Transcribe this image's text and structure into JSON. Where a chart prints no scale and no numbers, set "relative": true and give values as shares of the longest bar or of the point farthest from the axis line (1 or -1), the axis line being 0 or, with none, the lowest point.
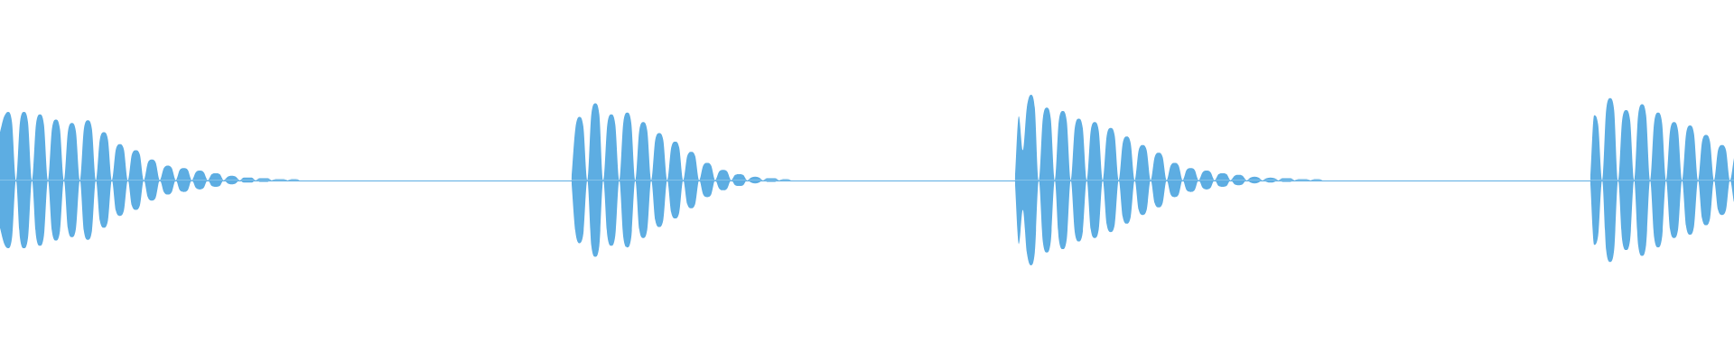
{
  "chart_data": {
    "type": "area",
    "relative": true,
    "categories": [
      null,
      null,
      null,
      null,
      null,
      null,
      null,
      null,
      null,
      null,
      null,
      null,
      null,
      null,
      null,
      null,
      null,
      null,
      null,
      null,
      null,
      null,
      null,
      null,
      null,
      null,
      null,
      null,
      null,
      null,
      null,
      null,
      null,
      null,
      null,
      null,
      null,
      null,
      null,
      null,
      null,
      null,
      null,
      null,
      null,
      null,
      null,
      null,
      null,
      null,
      null,
      null,
      null,
      null,
      null,
      null,
      null,
      null,
      null,
      null,
      null,
      null,
      null,
      null,
      null,
      null,
      null,
      null,
      null,
      null,
      null,
      null,
      null,
      null,
      null,
      null,
      null,
      null,
      null,
      null,
      null,
      null,
      null,
      null,
      null,
      null,
      null,
      null,
      null,
      null,
      null,
      null,
      null,
      null,
      null,
      null,
      null,
      null,
      null,
      null,
      null,
      null,
      null,
      null,
      null,
      null,
      null,
      null,
      null,
      null,
      null,
      null,
      null,
      null,
      null,
      null,
      null,
      null,
      null,
      null,
      null,
      null,
      null,
      null,
      null,
      null,
      null,
      null,
      null,
      null,
      null,
      null,
      null,
      null,
      null,
      null,
      null,
      null,
      null,
      null,
      null,
      null,
      null,
      null,
      null,
      null,
      null,
      null,
      null,
      null,
      null,
      null,
      null,
      null,
      null,
      null,
      null,
      null,
      null,
      null,
      null,
      null,
      null,
      null,
      null,
      null,
      null,
      null,
      null,
      null,
      null,
      null,
      null,
      null,
      null,
      null,
      null,
      null,
      null,
      null,
      null,
      null,
      null,
      null,
      null,
      null,
      null,
      null,
      null,
      null,
      null,
      null,
      null,
      null,
      null,
      null,
      null,
      null,
      null,
      null,
      null,
      null,
      null,
      null,
      null,
      null,
      null,
      null,
      null,
      null,
      null,
      null,
      null,
      null,
      null,
      null,
      null,
      null,
      null,
      null,
      null,
      null,
      null,
      null,
      null,
      null,
      null,
      null,
      null,
      null,
      null,
      null,
      null,
      null,
      null,
      null,
      null,
      null,
      null,
      null,
      null,
      null,
      null,
      null,
      null,
      null,
      null,
      null,
      null,
      null,
      null,
      null,
      null,
      null,
      null,
      null,
      null,
      null,
      null,
      null,
      null,
      null,
      null,
      null,
      null,
      null,
      null,
      null,
      null,
      null,
      null,
      null,
      null,
      null,
      null,
      null,
      null,
      null,
      null,
      null,
      null,
      null,
      null,
      null,
      null,
      null,
      null,
      null,
      null,
      null,
      null,
      null,
      null,
      null,
      null,
      null,
      null,
      null,
      null,
      null,
      null,
      null,
      null,
      null,
      null,
      null,
      null,
      null,
      null,
      null,
      null,
      null,
      null,
      null,
      null,
      null,
      null,
      null,
      null,
      null,
      null,
      null,
      null,
      null,
      null,
      null,
      null,
      null,
      null,
      null,
      null,
      null,
      null,
      null,
      null,
      null,
      null,
      null,
      null,
      null,
      null,
      null,
      null,
      null,
      null,
      null,
      null,
      null,
      null,
      null,
      null,
      null,
      null,
      null,
      null,
      null,
      null,
      null,
      null,
      null,
      null,
      null,
      null,
      null,
      null,
      null,
      null,
      null,
      null,
      null,
      null,
      null,
      null,
      null,
      null,
      null,
      null,
      null,
      null,
      null,
      null,
      null,
      null,
      null,
      null,
      null,
      null,
      null,
      null,
      null,
      null,
      null,
      null,
      null,
      null,
      null,
      null,
      null,
      null,
      null,
      null,
      null,
      null,
      null,
      null,
      null,
      null,
      null,
      null,
      null,
      null,
      null,
      null,
      null,
      null,
      null,
      null,
      null,
      null,
      null,
      null,
      null,
      null,
      null,
      null,
      null,
      null,
      null,
      null,
      null,
      null,
      null,
      null,
      null,
      null
    ],
    "series": [
      {
        "color": "#5dade2",
        "values": [
          0.56,
          0.74,
          0.8,
          0.68,
          0,
          0.68,
          0.8,
          0.68,
          0,
          0.65,
          0.77,
          0.65,
          0,
          0.6,
          0.71,
          0.6,
          0,
          0.57,
          0.67,
          0.57,
          0,
          0.6,
          0.7,
          0.6,
          0,
          0.48,
          0.56,
          0.48,
          0,
          0.36,
          0.42,
          0.36,
          0,
          0.3,
          0.35,
          0.3,
          0,
          0.2,
          0.24,
          0.2,
          0,
          0.14,
          0.17,
          0.14,
          0,
          0.12,
          0.14,
          0.12,
          0,
          0.09,
          0.11,
          0.09,
          0,
          0.07,
          0.08,
          0.07,
          0,
          0.04,
          0.05,
          0.04,
          0,
          0.03,
          0.03,
          0.03,
          0,
          0.02,
          0.02,
          0.02,
          0,
          0.01,
          0.01,
          0.01,
          0,
          0.01,
          0.01,
          0,
          null,
          null,
          null,
          null,
          null,
          null,
          null,
          null,
          null,
          null,
          null,
          null,
          null,
          null,
          null,
          null,
          null,
          null,
          null,
          null,
          null,
          null,
          null,
          null,
          null,
          null,
          null,
          null,
          null,
          null,
          null,
          null,
          null,
          null,
          null,
          null,
          null,
          null,
          null,
          null,
          null,
          null,
          null,
          null,
          null,
          null,
          null,
          null,
          null,
          null,
          null,
          null,
          null,
          null,
          null,
          null,
          null,
          null,
          null,
          null,
          null,
          null,
          null,
          null,
          null,
          null,
          null,
          0,
          0.6,
          0.74,
          0.63,
          0,
          0.77,
          0.9,
          0.77,
          0,
          0.65,
          0.77,
          0.65,
          0,
          0.67,
          0.79,
          0.67,
          0,
          0.58,
          0.68,
          0.58,
          0,
          0.47,
          0.55,
          0.47,
          0,
          0.38,
          0.45,
          0.38,
          0,
          0.28,
          0.33,
          0.28,
          0,
          0.17,
          0.2,
          0.17,
          0,
          0.1,
          0.12,
          0.1,
          0,
          0.06,
          0.07,
          0.06,
          0,
          0.03,
          0.04,
          0.03,
          0,
          0.02,
          0.02,
          0.02,
          0,
          0.01,
          0.01,
          0,
          null,
          null,
          null,
          null,
          null,
          null,
          null,
          null,
          null,
          null,
          null,
          null,
          null,
          null,
          null,
          null,
          null,
          null,
          null,
          null,
          null,
          null,
          null,
          null,
          null,
          null,
          null,
          null,
          null,
          null,
          null,
          null,
          null,
          null,
          null,
          null,
          null,
          null,
          null,
          null,
          null,
          null,
          null,
          null,
          null,
          null,
          null,
          null,
          null,
          null,
          null,
          null,
          null,
          null,
          null,
          0,
          0.75,
          0.35,
          0.85,
          1,
          0.85,
          0,
          0.72,
          0.85,
          0.72,
          0,
          0.69,
          0.81,
          0.69,
          0,
          0.61,
          0.72,
          0.61,
          0,
          0.58,
          0.68,
          0.58,
          0,
          0.52,
          0.61,
          0.52,
          0,
          0.43,
          0.51,
          0.43,
          0,
          0.35,
          0.41,
          0.35,
          0,
          0.27,
          0.32,
          0.27,
          0,
          0.17,
          0.2,
          0.17,
          0,
          0.12,
          0.14,
          0.12,
          0,
          0.09,
          0.11,
          0.09,
          0,
          0.07,
          0.08,
          0.07,
          0,
          0.05,
          0.06,
          0.05,
          0,
          0.03,
          0.04,
          0.03,
          0,
          0.02,
          0.03,
          0.02,
          0,
          0.02,
          0.02,
          0.02,
          0,
          0.01,
          0.01,
          0.01,
          0,
          0.01,
          0.01,
          0,
          null,
          null,
          null,
          null,
          null,
          null,
          null,
          null,
          null,
          null,
          null,
          null,
          null,
          null,
          null,
          null,
          null,
          null,
          null,
          null,
          null,
          null,
          null,
          null,
          null,
          null,
          null,
          null,
          null,
          null,
          null,
          null,
          null,
          null,
          null,
          null,
          null,
          null,
          null,
          null,
          null,
          null,
          null,
          null,
          null,
          null,
          null,
          null,
          null,
          null,
          null,
          null,
          null,
          null,
          null,
          null,
          null,
          null,
          null,
          null,
          null,
          null,
          null,
          null,
          null,
          null,
          0,
          0.76,
          0.65,
          0,
          0.82,
          0.96,
          0.82,
          0,
          0.7,
          0.82,
          0.7,
          0,
          0.76,
          0.89,
          0.76,
          0,
          0.67,
          0.79,
          0.67,
          0,
          0.58,
          0.68,
          0.58,
          0,
          0.54,
          0.64,
          0.54,
          0,
          0.45,
          0.53,
          0.45,
          0,
          0.35,
          0.41,
          0.35,
          0,
          0.26
        ]
      },
      {
        "color": "#5dade2",
        "values": [
          -0.56,
          -0.74,
          -0.8,
          -0.68,
          0,
          -0.68,
          -0.8,
          -0.68,
          0,
          -0.65,
          -0.77,
          -0.65,
          0,
          -0.6,
          -0.71,
          -0.6,
          0,
          -0.57,
          -0.67,
          -0.57,
          0,
          -0.6,
          -0.7,
          -0.6,
          0,
          -0.48,
          -0.56,
          -0.48,
          0,
          -0.36,
          -0.42,
          -0.36,
          0,
          -0.3,
          -0.35,
          -0.3,
          0,
          -0.2,
          -0.24,
          -0.2,
          0,
          -0.14,
          -0.17,
          -0.14,
          0,
          -0.12,
          -0.14,
          -0.12,
          0,
          -0.09,
          -0.11,
          -0.09,
          0,
          -0.07,
          -0.08,
          -0.07,
          0,
          -0.04,
          -0.05,
          -0.04,
          0,
          -0.03,
          -0.03,
          -0.03,
          0,
          -0.02,
          -0.02,
          -0.02,
          0,
          -0.01,
          -0.01,
          -0.01,
          0,
          -0.01,
          -0.01,
          0,
          null,
          null,
          null,
          null,
          null,
          null,
          null,
          null,
          null,
          null,
          null,
          null,
          null,
          null,
          null,
          null,
          null,
          null,
          null,
          null,
          null,
          null,
          null,
          null,
          null,
          null,
          null,
          null,
          null,
          null,
          null,
          null,
          null,
          null,
          null,
          null,
          null,
          null,
          null,
          null,
          null,
          null,
          null,
          null,
          null,
          null,
          null,
          null,
          null,
          null,
          null,
          null,
          null,
          null,
          null,
          null,
          null,
          null,
          null,
          null,
          null,
          null,
          null,
          null,
          null,
          null,
          null,
          0,
          -0.6,
          -0.74,
          -0.63,
          0,
          -0.77,
          -0.9,
          -0.77,
          0,
          -0.65,
          -0.77,
          -0.65,
          0,
          -0.67,
          -0.79,
          -0.67,
          0,
          -0.58,
          -0.68,
          -0.58,
          0,
          -0.47,
          -0.55,
          -0.47,
          0,
          -0.38,
          -0.45,
          -0.38,
          0,
          -0.28,
          -0.33,
          -0.28,
          0,
          -0.17,
          -0.2,
          -0.17,
          0,
          -0.1,
          -0.12,
          -0.1,
          0,
          -0.06,
          -0.07,
          -0.06,
          0,
          -0.03,
          -0.04,
          -0.03,
          0,
          -0.02,
          -0.02,
          -0.02,
          0,
          -0.01,
          -0.01,
          0,
          null,
          null,
          null,
          null,
          null,
          null,
          null,
          null,
          null,
          null,
          null,
          null,
          null,
          null,
          null,
          null,
          null,
          null,
          null,
          null,
          null,
          null,
          null,
          null,
          null,
          null,
          null,
          null,
          null,
          null,
          null,
          null,
          null,
          null,
          null,
          null,
          null,
          null,
          null,
          null,
          null,
          null,
          null,
          null,
          null,
          null,
          null,
          null,
          null,
          null,
          null,
          null,
          null,
          null,
          null,
          0,
          -0.75,
          -0.35,
          -0.85,
          -1,
          -0.85,
          0,
          -0.72,
          -0.85,
          -0.72,
          0,
          -0.69,
          -0.81,
          -0.69,
          0,
          -0.61,
          -0.72,
          -0.61,
          0,
          -0.58,
          -0.68,
          -0.58,
          0,
          -0.52,
          -0.61,
          -0.52,
          0,
          -0.43,
          -0.51,
          -0.43,
          0,
          -0.35,
          -0.41,
          -0.35,
          0,
          -0.27,
          -0.32,
          -0.27,
          0,
          -0.17,
          -0.2,
          -0.17,
          0,
          -0.12,
          -0.14,
          -0.12,
          0,
          -0.09,
          -0.11,
          -0.09,
          0,
          -0.07,
          -0.08,
          -0.07,
          0,
          -0.05,
          -0.06,
          -0.05,
          0,
          -0.03,
          -0.04,
          -0.03,
          0,
          -0.02,
          -0.03,
          -0.02,
          0,
          -0.02,
          -0.02,
          -0.02,
          0,
          -0.01,
          -0.01,
          -0.01,
          0,
          -0.01,
          -0.01,
          0,
          null,
          null,
          null,
          null,
          null,
          null,
          null,
          null,
          null,
          null,
          null,
          null,
          null,
          null,
          null,
          null,
          null,
          null,
          null,
          null,
          null,
          null,
          null,
          null,
          null,
          null,
          null,
          null,
          null,
          null,
          null,
          null,
          null,
          null,
          null,
          null,
          null,
          null,
          null,
          null,
          null,
          null,
          null,
          null,
          null,
          null,
          null,
          null,
          null,
          null,
          null,
          null,
          null,
          null,
          null,
          null,
          null,
          null,
          null,
          null,
          null,
          null,
          null,
          null,
          null,
          null,
          0,
          -0.76,
          -0.65,
          0,
          -0.82,
          -0.96,
          -0.82,
          0,
          -0.7,
          -0.82,
          -0.7,
          0,
          -0.76,
          -0.89,
          -0.76,
          0,
          -0.67,
          -0.79,
          -0.67,
          0,
          -0.58,
          -0.68,
          -0.58,
          0,
          -0.54,
          -0.64,
          -0.54,
          0,
          -0.45,
          -0.53,
          -0.45,
          0,
          -0.35,
          -0.41,
          -0.35,
          0,
          -0.26
        ]
      }
    ],
    "ref_lines": [
      {
        "axis": "y",
        "value": 0,
        "color": "#5dade2"
      }
    ]
  }
}
